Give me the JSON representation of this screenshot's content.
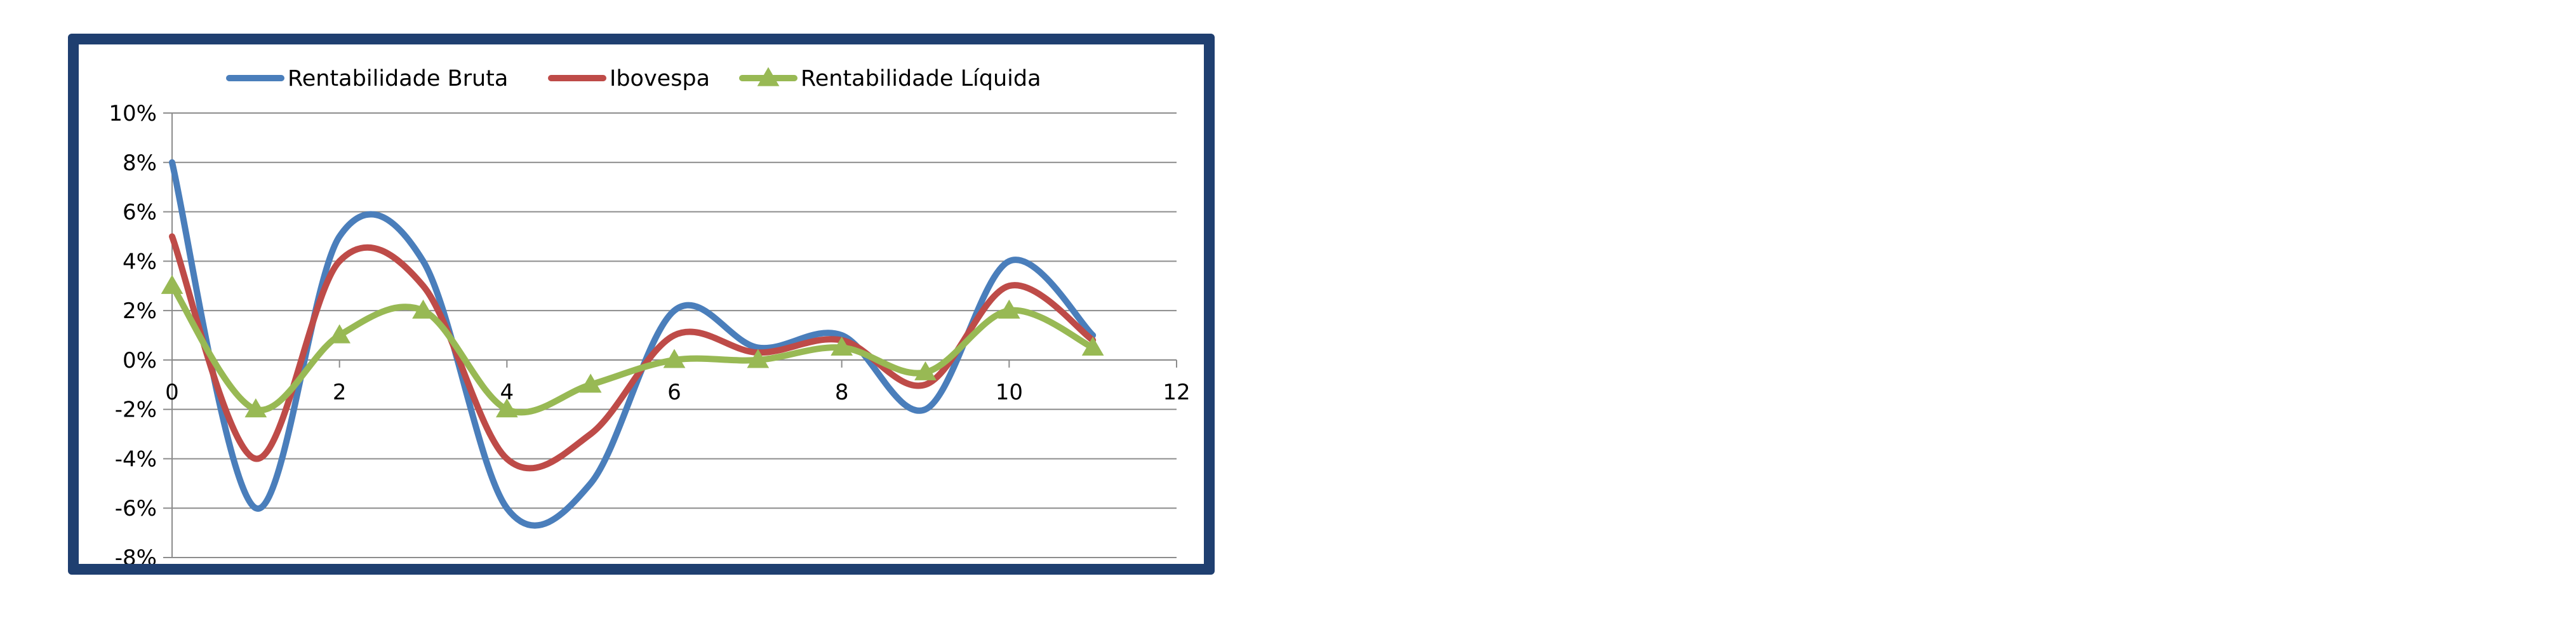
{
  "chart_data": {
    "type": "line",
    "smooth": true,
    "title": "",
    "xlabel": "",
    "ylabel": "",
    "xlim": [
      0,
      12
    ],
    "ylim": [
      -8,
      10
    ],
    "y_unit": "%",
    "x_ticks": [
      0,
      2,
      4,
      6,
      8,
      10,
      12
    ],
    "y_ticks": [
      10,
      8,
      6,
      4,
      2,
      0,
      -2,
      -4,
      -6,
      -8
    ],
    "x_tick_labels": [
      "0",
      "2",
      "4",
      "6",
      "8",
      "10",
      "12"
    ],
    "y_tick_labels": [
      "10%",
      "8%",
      "6%",
      "4%",
      "2%",
      "0%",
      "-2%",
      "-4%",
      "-6%",
      "-8%"
    ],
    "grid": "horizontal",
    "legend_position": "top",
    "x": [
      0,
      1,
      2,
      3,
      4,
      5,
      6,
      7,
      8,
      9,
      10,
      11
    ],
    "series": [
      {
        "name": "Rentabilidade Bruta",
        "color": "#4a7ebb",
        "marker": "none",
        "values": [
          8,
          -6,
          5,
          4,
          -6,
          -5,
          2,
          0.5,
          1,
          -2,
          4,
          1
        ]
      },
      {
        "name": "Ibovespa",
        "color": "#be4b48",
        "marker": "none",
        "values": [
          5,
          -4,
          4,
          3,
          -4,
          -3,
          1,
          0.3,
          0.8,
          -1,
          3,
          0.8
        ]
      },
      {
        "name": "Rentabilidade Líquida",
        "color": "#98b954",
        "marker": "triangle",
        "values": [
          3,
          -2,
          1,
          2,
          -2,
          -1,
          0,
          0,
          0.5,
          -0.5,
          2,
          0.5
        ]
      }
    ]
  }
}
